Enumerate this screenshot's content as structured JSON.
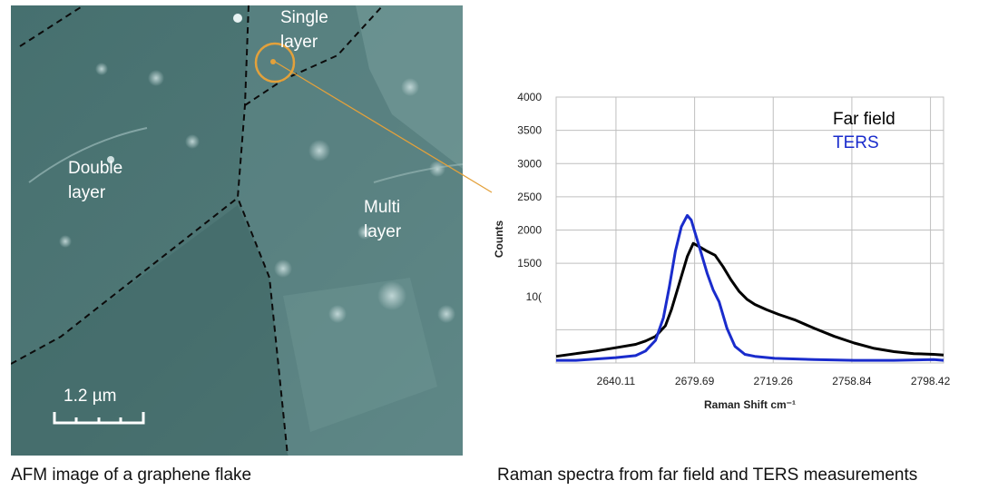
{
  "afm": {
    "labels": {
      "single": "Single\nlayer",
      "double": "Double\nlayer",
      "multi": "Multi\nlayer"
    },
    "scale_bar": "1.2 µm",
    "caption": "AFM image of a graphene flake"
  },
  "raman": {
    "caption": "Raman spectra from far field and TERS measurements"
  },
  "colors": {
    "afm_background": "#4f7676",
    "far_field": "#000000",
    "ters": "#1a2ccc",
    "highlight": "#e3a13b"
  },
  "chart_data": {
    "type": "line",
    "xlabel": "Raman Shift cm⁻¹",
    "ylabel": "Counts",
    "x_ticks": [
      "2640.11",
      "2679.69",
      "2719.26",
      "2758.84",
      "2798.42"
    ],
    "y_ticks": [
      "4000",
      "3500",
      "3000",
      "2500",
      "2000",
      "1500",
      "10("
    ],
    "xlim": [
      2610,
      2805
    ],
    "ylim": [
      0,
      4000
    ],
    "grid": true,
    "legend_position": "top-right",
    "series": [
      {
        "name": "Far field",
        "color": "#000000",
        "x": [
          2610,
          2620,
          2630,
          2640,
          2650,
          2655,
          2660,
          2665,
          2668,
          2672,
          2676,
          2679,
          2682,
          2686,
          2690,
          2694,
          2698,
          2702,
          2706,
          2710,
          2716,
          2722,
          2730,
          2740,
          2750,
          2760,
          2770,
          2780,
          2790,
          2800,
          2805
        ],
        "y": [
          100,
          140,
          180,
          230,
          280,
          330,
          400,
          560,
          800,
          1200,
          1600,
          1800,
          1750,
          1680,
          1620,
          1450,
          1250,
          1080,
          960,
          880,
          800,
          730,
          650,
          520,
          400,
          300,
          220,
          170,
          140,
          130,
          120
        ]
      },
      {
        "name": "TERS",
        "color": "#1a2ccc",
        "x": [
          2610,
          2620,
          2630,
          2640,
          2650,
          2655,
          2660,
          2664,
          2667,
          2670,
          2673,
          2676,
          2678,
          2680,
          2683,
          2686,
          2689,
          2692,
          2696,
          2700,
          2705,
          2710,
          2720,
          2740,
          2760,
          2780,
          2800,
          2805
        ],
        "y": [
          40,
          40,
          60,
          80,
          110,
          180,
          340,
          680,
          1150,
          1680,
          2050,
          2220,
          2150,
          1950,
          1650,
          1350,
          1100,
          920,
          520,
          250,
          130,
          100,
          70,
          50,
          40,
          40,
          50,
          40
        ]
      }
    ]
  }
}
